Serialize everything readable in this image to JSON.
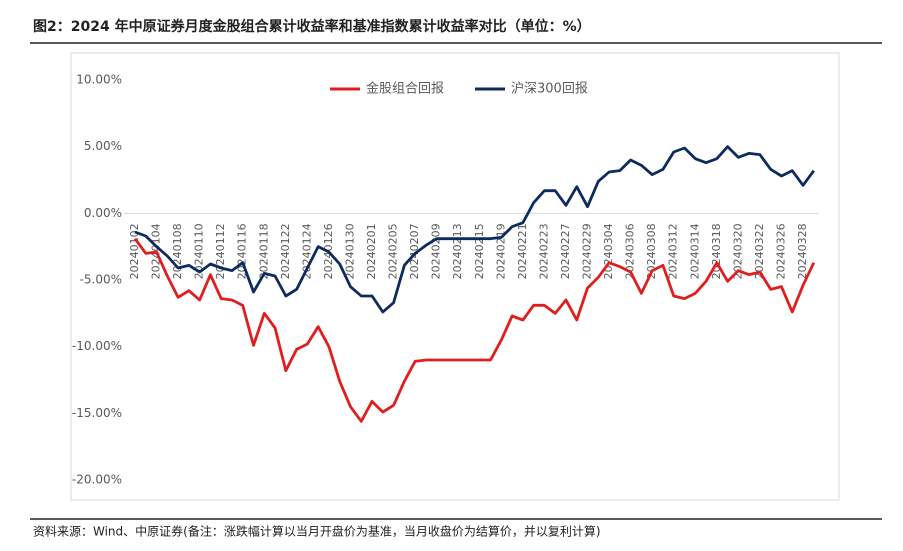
{
  "chart_data": {
    "type": "line",
    "title": "图2：2024 年中原证券月度金股组合累计收益率和基准指数累计收益率对比（单位：%）",
    "note": "资料来源：Wind、中原证券(备注：涨跌幅计算以当月开盘价为基准，当月收盘价为结算价，并以复利计算)",
    "categories": [
      "20240102",
      null,
      "20240104",
      null,
      "20240108",
      null,
      "20240110",
      null,
      "20240112",
      null,
      "20240116",
      null,
      "20240118",
      null,
      "20240122",
      null,
      "20240124",
      null,
      "20240126",
      null,
      "20240130",
      null,
      "20240201",
      null,
      "20240205",
      null,
      "20240207",
      null,
      "20240209",
      null,
      "20240213",
      null,
      "20240215",
      null,
      "20240219",
      null,
      "20240221",
      null,
      "20240223",
      null,
      "20240227",
      null,
      "20240229",
      null,
      "20240304",
      null,
      "20240306",
      null,
      "20240308",
      null,
      "20240312",
      null,
      "20240314",
      null,
      "20240318",
      null,
      "20240320",
      null,
      "20240322",
      null,
      "20240326",
      null,
      "20240328",
      null
    ],
    "series": [
      {
        "name": "金股组合回报",
        "color": "#e01e1e",
        "values": [
          -1.9,
          -3.0,
          -2.9,
          -4.7,
          -6.3,
          -5.8,
          -6.5,
          -4.6,
          -6.4,
          -6.5,
          -6.9,
          -9.9,
          -7.5,
          -8.6,
          -11.8,
          -10.2,
          -9.8,
          -8.5,
          -10.0,
          -12.6,
          -14.5,
          -15.6,
          -14.1,
          -14.9,
          -14.4,
          -12.6,
          -11.1,
          -11.0,
          -11.0,
          -11.0,
          -11.0,
          -11.0,
          -11.0,
          -11.0,
          -9.5,
          -7.7,
          -8.0,
          -6.9,
          -6.9,
          -7.5,
          -6.5,
          -8.0,
          -5.6,
          -4.8,
          -3.7,
          -4.0,
          -4.4,
          -6.0,
          -4.3,
          -3.9,
          -6.2,
          -6.4,
          -6.0,
          -5.1,
          -3.7,
          -5.1,
          -4.3,
          -4.6,
          -4.4,
          -5.7,
          -5.5,
          -7.4,
          -5.4,
          -3.7
        ]
      },
      {
        "name": "沪深300回报",
        "color": "#0d2b5e",
        "values": [
          -1.4,
          -1.7,
          -2.5,
          -3.2,
          -4.1,
          -3.9,
          -4.4,
          -3.8,
          -4.1,
          -4.3,
          -3.7,
          -5.9,
          -4.5,
          -4.7,
          -6.2,
          -5.7,
          -4.1,
          -2.5,
          -2.9,
          -3.8,
          -5.5,
          -6.2,
          -6.2,
          -7.4,
          -6.7,
          -3.9,
          -3.0,
          -2.4,
          -1.9,
          -1.9,
          -1.9,
          -1.9,
          -1.9,
          -1.9,
          -1.8,
          -1.0,
          -0.7,
          0.8,
          1.7,
          1.7,
          0.6,
          2.0,
          0.5,
          2.4,
          3.1,
          3.2,
          4.0,
          3.6,
          2.9,
          3.3,
          4.6,
          4.9,
          4.1,
          3.8,
          4.1,
          5.0,
          4.2,
          4.5,
          4.4,
          3.3,
          2.8,
          3.2,
          2.1,
          3.2
        ]
      }
    ],
    "ylim": [
      -20,
      10
    ],
    "yticks": [
      {
        "value": 10,
        "label": "10.00%"
      },
      {
        "value": 5,
        "label": "5.00%"
      },
      {
        "value": 0,
        "label": "0.00%"
      },
      {
        "value": -5,
        "label": "-5.00%"
      },
      {
        "value": -10,
        "label": "-10.00%"
      },
      {
        "value": -15,
        "label": "-15.00%"
      },
      {
        "value": -20,
        "label": "-20.00%"
      }
    ],
    "grid": false,
    "legend_position": "top"
  }
}
